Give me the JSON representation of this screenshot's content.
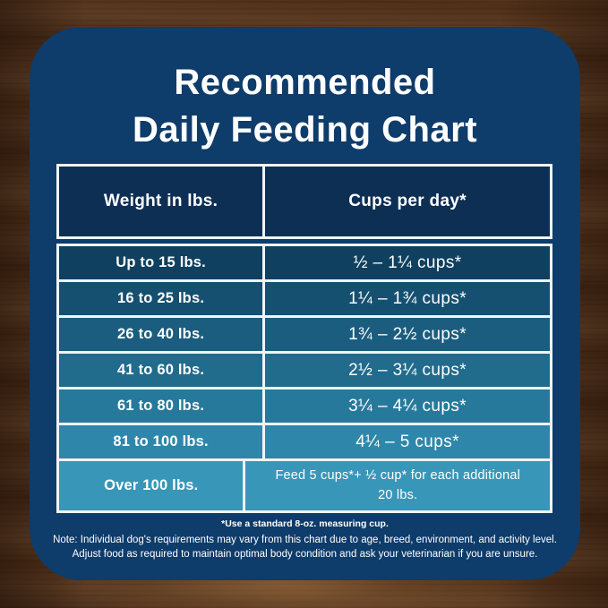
{
  "title": {
    "line1": "Recommended",
    "line2": "Daily Feeding Chart"
  },
  "table": {
    "headers": {
      "weight": "Weight in lbs.",
      "cups": "Cups per day*"
    },
    "rows": [
      {
        "weight": "Up to 15 lbs.",
        "cups": "½ – 1¼ cups*",
        "color": "#10405f"
      },
      {
        "weight": "16 to 25 lbs.",
        "cups": "1¼ – 1¾ cups*",
        "color": "#165070"
      },
      {
        "weight": "26 to 40 lbs.",
        "cups": "1¾ – 2½ cups*",
        "color": "#1b5d7e"
      },
      {
        "weight": "41 to 60 lbs.",
        "cups": "2½ – 3¼ cups*",
        "color": "#216b8c"
      },
      {
        "weight": "61 to 80 lbs.",
        "cups": "3¼ – 4¼ cups*",
        "color": "#27799c"
      },
      {
        "weight": "81 to 100 lbs.",
        "cups": "4¼ – 5 cups*",
        "color": "#2e87aa"
      },
      {
        "weight": "Over 100 lbs.",
        "cups": "Feed 5 cups*+ ½ cup* for each additional 20 lbs.",
        "color": "#3896b8"
      }
    ]
  },
  "footnotes": {
    "line1": "*Use a standard 8-oz. measuring cup.",
    "line2": "Note: Individual dog's requirements may vary from this chart due to age, breed, environment, and activity level.",
    "line3": "Adjust food as required to maintain optimal body condition and ask your veterinarian if you are unsure."
  },
  "colors": {
    "card_bg": "#0e3c6b",
    "header_cell_bg": "#0d2f54",
    "table_border": "#f0f4f7",
    "text": "#ffffff",
    "wood_base": "#4a2e1a"
  },
  "chart_data": {
    "type": "table",
    "title": "Recommended Daily Feeding Chart",
    "columns": [
      "Weight in lbs.",
      "Cups per day*"
    ],
    "rows": [
      [
        "Up to 15 lbs.",
        "½ – 1¼ cups*"
      ],
      [
        "16 to 25 lbs.",
        "1¼ – 1¾ cups*"
      ],
      [
        "26 to 40 lbs.",
        "1¾ – 2½ cups*"
      ],
      [
        "41 to 60 lbs.",
        "2½ – 3¼ cups*"
      ],
      [
        "61 to 80 lbs.",
        "3¼ – 4¼ cups*"
      ],
      [
        "81 to 100 lbs.",
        "4¼ – 5 cups*"
      ],
      [
        "Over 100 lbs.",
        "Feed 5 cups*+ ½ cup* for each additional 20 lbs."
      ]
    ],
    "notes": [
      "*Use a standard 8-oz. measuring cup.",
      "Note: Individual dog's requirements may vary from this chart due to age, breed, environment, and activity level.",
      "Adjust food as required to maintain optimal body condition and ask your veterinarian if you are unsure."
    ],
    "layout_hints": {
      "row_background_gradient": [
        "#10405f",
        "#3896b8"
      ],
      "header_background": "#0d2f54"
    }
  }
}
